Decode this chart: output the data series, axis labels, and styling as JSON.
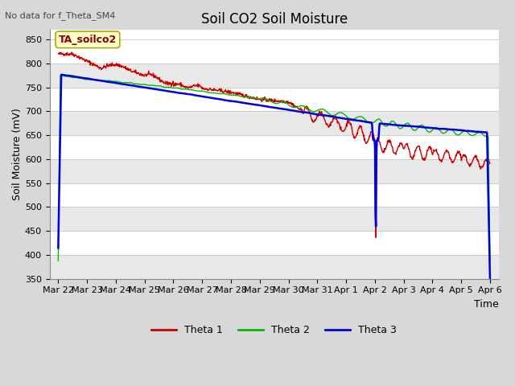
{
  "title": "Soil CO2 Soil Moisture",
  "no_data_label": "No data for f_Theta_SM4",
  "annotation_box": "TA_soilco2",
  "ylabel": "Soil Moisture (mV)",
  "xlabel": "Time",
  "ylim": [
    350,
    870
  ],
  "yticks": [
    350,
    400,
    450,
    500,
    550,
    600,
    650,
    700,
    750,
    800,
    850
  ],
  "fig_bg_color": "#d8d8d8",
  "plot_bg_color": "#ffffff",
  "grid_color": "#d0d0d0",
  "theta1_color": "#cc0000",
  "theta2_color": "#00bb00",
  "theta3_color": "#0000dd",
  "legend_labels": [
    "Theta 1",
    "Theta 2",
    "Theta 3"
  ],
  "x_tick_labels": [
    "Mar 22",
    "Mar 23",
    "Mar 24",
    "Mar 25",
    "Mar 26",
    "Mar 27",
    "Mar 28",
    "Mar 29",
    "Mar 30",
    "Mar 31",
    "Apr 1",
    "Apr 2",
    "Apr 3",
    "Apr 4",
    "Apr 5",
    "Apr 6"
  ],
  "num_points": 1000
}
